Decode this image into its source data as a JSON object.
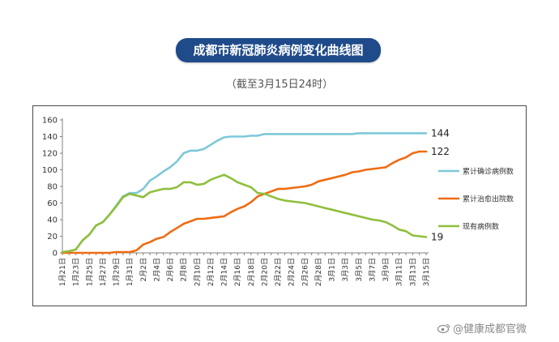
{
  "header": {
    "title": "成都市新冠肺炎病例变化曲线图",
    "subtitle": "（截至3月15日24时）"
  },
  "watermark": {
    "text": "@健康成都官微",
    "icon": "weibo-icon"
  },
  "colors": {
    "title_bg": "#1f4b8a",
    "confirmed": "#7ec8d8",
    "cured": "#ef6c13",
    "existing": "#8fbf3c"
  },
  "chart_data": {
    "type": "line",
    "x": [
      "1月21日",
      "1月22日",
      "1月23日",
      "1月24日",
      "1月25日",
      "1月26日",
      "1月27日",
      "1月28日",
      "1月29日",
      "1月30日",
      "1月31日",
      "2月1日",
      "2月2日",
      "2月3日",
      "2月4日",
      "2月5日",
      "2月6日",
      "2月7日",
      "2月8日",
      "2月9日",
      "2月10日",
      "2月11日",
      "2月12日",
      "2月13日",
      "2月14日",
      "2月15日",
      "2月16日",
      "2月17日",
      "2月18日",
      "2月19日",
      "2月20日",
      "2月21日",
      "2月22日",
      "2月23日",
      "2月24日",
      "2月25日",
      "2月26日",
      "2月27日",
      "2月28日",
      "2月29日",
      "3月1日",
      "3月2日",
      "3月3日",
      "3月4日",
      "3月5日",
      "3月6日",
      "3月7日",
      "3月8日",
      "3月9日",
      "3月10日",
      "3月11日",
      "3月12日",
      "3月13日",
      "3月14日",
      "3月15日"
    ],
    "x_tick_labels": [
      "1月21日",
      "1月23日",
      "1月25日",
      "1月27日",
      "1月29日",
      "1月31日",
      "2月2日",
      "2月4日",
      "2月6日",
      "2月8日",
      "2月10日",
      "2月12日",
      "2月14日",
      "2月16日",
      "2月18日",
      "2月20日",
      "2月22日",
      "2月24日",
      "2月26日",
      "2月28日",
      "3月1日",
      "3月3日",
      "3月5日",
      "3月7日",
      "3月9日",
      "3月11日",
      "3月13日",
      "3月15日"
    ],
    "ylim": [
      0,
      160
    ],
    "yticks": [
      0,
      20,
      40,
      60,
      80,
      100,
      120,
      140,
      160
    ],
    "grid": false,
    "legend_position": "right",
    "series": [
      {
        "name": "累计确诊病例数",
        "color": "#7ec8d8",
        "end_label": "144",
        "values": [
          1,
          2,
          4,
          15,
          22,
          33,
          37,
          46,
          57,
          68,
          72,
          72,
          77,
          87,
          92,
          98,
          103,
          110,
          120,
          123,
          123,
          125,
          130,
          135,
          139,
          140,
          140,
          140,
          141,
          141,
          143,
          143,
          143,
          143,
          143,
          143,
          143,
          143,
          143,
          143,
          143,
          143,
          143,
          143,
          144,
          144,
          144,
          144,
          144,
          144,
          144,
          144,
          144,
          144,
          144
        ]
      },
      {
        "name": "累计治愈出院数",
        "color": "#ef6c13",
        "end_label": "122",
        "values": [
          0,
          0,
          0,
          0,
          0,
          0,
          0,
          0,
          1,
          1,
          1,
          3,
          10,
          13,
          17,
          19,
          25,
          30,
          35,
          38,
          41,
          41,
          42,
          43,
          44,
          49,
          53,
          56,
          61,
          68,
          71,
          74,
          77,
          77,
          78,
          79,
          80,
          82,
          86,
          88,
          90,
          92,
          94,
          97,
          98,
          100,
          101,
          102,
          103,
          108,
          112,
          115,
          120,
          122,
          122
        ]
      },
      {
        "name": "现有病例数",
        "color": "#8fbf3c",
        "end_label": "19",
        "values": [
          1,
          2,
          4,
          15,
          22,
          33,
          37,
          46,
          56,
          67,
          71,
          69,
          67,
          73,
          75,
          77,
          77,
          79,
          85,
          85,
          82,
          83,
          88,
          91,
          94,
          90,
          85,
          82,
          79,
          72,
          71,
          68,
          65,
          63,
          62,
          61,
          60,
          58,
          56,
          54,
          52,
          50,
          48,
          46,
          44,
          42,
          40,
          39,
          37,
          33,
          28,
          26,
          21,
          20,
          19
        ]
      }
    ]
  }
}
